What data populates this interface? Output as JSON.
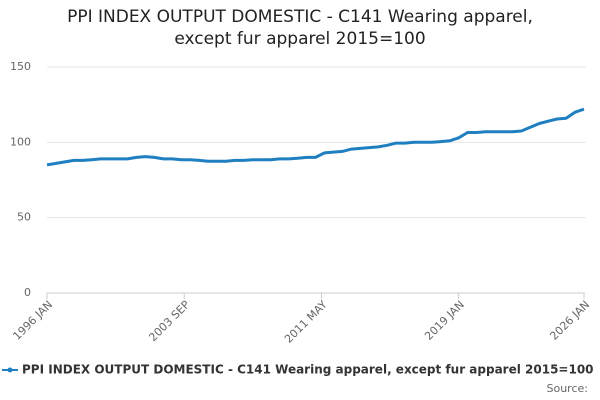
{
  "chart_data": {
    "type": "line",
    "title": "PPI INDEX OUTPUT DOMESTIC - C141 Wearing apparel, except fur apparel 2015=100",
    "x": [
      "1996 JAN",
      "1996 JUL",
      "1997 JAN",
      "1997 JUL",
      "1998 JAN",
      "1998 JUL",
      "1999 JAN",
      "1999 JUL",
      "2000 JAN",
      "2000 JUL",
      "2001 JAN",
      "2001 JUL",
      "2002 JAN",
      "2002 JUL",
      "2003 JAN",
      "2003 JUL",
      "2004 JAN",
      "2004 JUL",
      "2005 JAN",
      "2005 JUL",
      "2006 JAN",
      "2006 JUL",
      "2007 JAN",
      "2007 JUL",
      "2008 JAN",
      "2008 JUL",
      "2009 JAN",
      "2009 JUL",
      "2010 JAN",
      "2010 JUL",
      "2011 JAN",
      "2011 JUL",
      "2012 JAN",
      "2012 JUL",
      "2013 JAN",
      "2013 JUL",
      "2014 JAN",
      "2014 JUL",
      "2015 JAN",
      "2015 JUL",
      "2016 JAN",
      "2016 JUL",
      "2017 JAN",
      "2017 JUL",
      "2018 JAN",
      "2018 JUL",
      "2019 JAN",
      "2019 JUL",
      "2020 JAN",
      "2020 JUL",
      "2021 JAN",
      "2021 JUL",
      "2022 JAN",
      "2022 JUL",
      "2023 JAN",
      "2023 JUL",
      "2024 JAN",
      "2024 JUL",
      "2025 JAN",
      "2025 JUL",
      "2026 JAN"
    ],
    "series": [
      {
        "name": "PPI INDEX OUTPUT DOMESTIC - C141 Wearing apparel, except fur apparel 2015=100",
        "color": "#1f7fc1",
        "values": [
          85,
          86,
          87,
          88,
          88,
          88.5,
          89,
          89,
          89,
          89,
          90,
          90.5,
          90,
          89,
          89,
          88.5,
          88.5,
          88,
          87.5,
          87.5,
          87.5,
          88,
          88,
          88.5,
          88.5,
          88.5,
          89,
          89,
          89.5,
          90,
          90,
          93,
          93.5,
          94,
          95.5,
          96,
          96.5,
          97,
          98,
          99.5,
          99.5,
          100,
          100,
          100,
          100.5,
          101,
          103,
          106.5,
          106.5,
          107,
          107,
          107,
          107,
          107.5,
          110,
          112.5,
          114,
          115.5,
          116,
          120,
          122
        ]
      }
    ],
    "xticks": [
      "1996 JAN",
      "2003 SEP",
      "2011 MAY",
      "2019 JAN",
      "2026 JAN"
    ],
    "ylim": [
      0,
      150
    ],
    "yticks": [
      0,
      50,
      100,
      150
    ],
    "grid": true,
    "legend": "bottom",
    "source": "Source:"
  }
}
